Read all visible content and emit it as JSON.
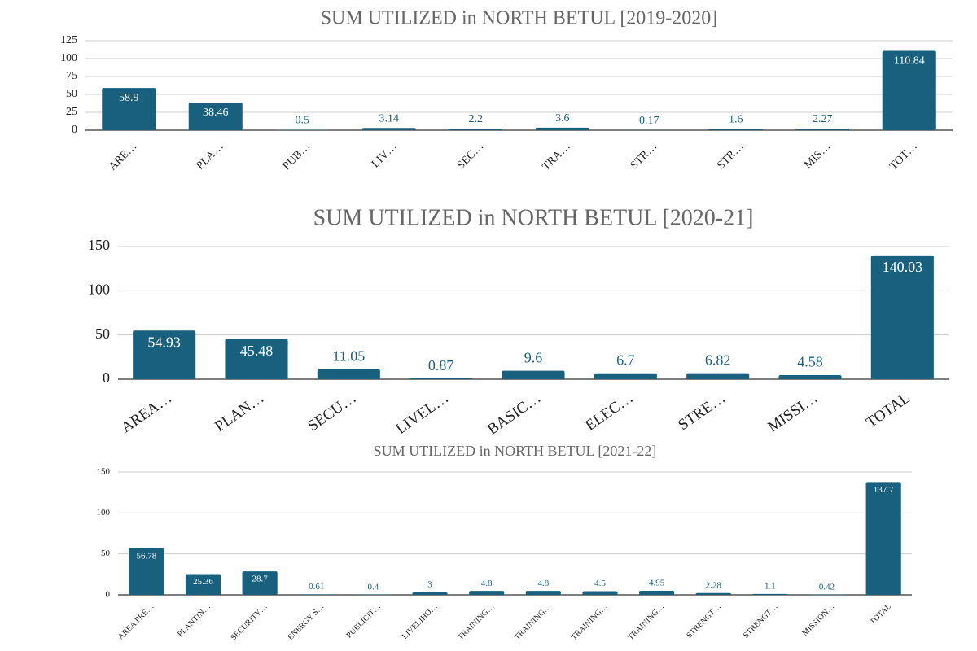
{
  "chart_data": [
    {
      "type": "bar",
      "title": "SUM UTILIZED in NORTH BETUL [2019-2020]",
      "categories": [
        "ARE…",
        "PLA…",
        "PUB…",
        "LIV…",
        "SEC…",
        "TRA…",
        "STR…",
        "STR…",
        "MIS…",
        "TOT…"
      ],
      "values": [
        58.9,
        38.46,
        0.5,
        3.14,
        2.2,
        3.6,
        0.17,
        1.6,
        2.27,
        110.84
      ],
      "color": "#19607f",
      "ylim": [
        0,
        125
      ],
      "yticks": [
        0,
        25,
        50,
        75,
        100,
        125
      ],
      "grid": true
    },
    {
      "type": "bar",
      "title": "SUM UTILIZED in NORTH BETUL [2020-21]",
      "categories": [
        "AREA…",
        "PLAN…",
        "SECU…",
        "LIVEL…",
        "BASIC…",
        "ELEC…",
        "STRE…",
        "MISSI…",
        "TOTAL"
      ],
      "values": [
        54.93,
        45.48,
        11.05,
        0.87,
        9.6,
        6.7,
        6.82,
        4.58,
        140.03
      ],
      "color": "#19607f",
      "ylim": [
        0,
        150
      ],
      "yticks": [
        0,
        50,
        100,
        150
      ],
      "grid": true
    },
    {
      "type": "bar",
      "title": "SUM UTILIZED in NORTH BETUL [2021-22]",
      "categories": [
        "AREA PRE…",
        "PLANTIN…",
        "SECURITY…",
        "ENERGY S…",
        "PUBLICIT…",
        "LIVELIHO…",
        "TRAINING…",
        "TRAINING…",
        "TRAINING…",
        "TRAINING…",
        "STRENGT…",
        "STRENGT…",
        "MISSION…",
        "TOTAL"
      ],
      "values": [
        56.78,
        25.36,
        28.7,
        0.61,
        0.4,
        3,
        4.8,
        4.8,
        4.5,
        4.95,
        2.28,
        1.1,
        0.42,
        137.7
      ],
      "color": "#19607f",
      "ylim": [
        0,
        150
      ],
      "yticks": [
        0,
        50,
        100,
        150
      ],
      "grid": true
    }
  ]
}
